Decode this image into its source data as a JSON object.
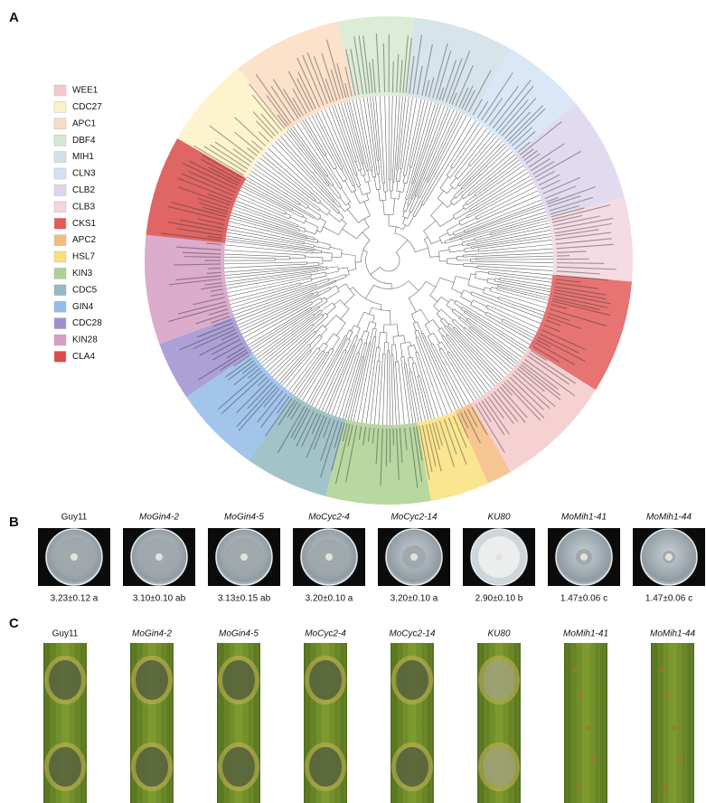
{
  "panels": {
    "a": "A",
    "b": "B",
    "c": "C"
  },
  "legend": {
    "items": [
      {
        "label": "WEE1",
        "color": "#f5c9cc"
      },
      {
        "label": "CDC27",
        "color": "#fdf1c6"
      },
      {
        "label": "APC1",
        "color": "#fbdcc2"
      },
      {
        "label": "DBF4",
        "color": "#d6e9d0"
      },
      {
        "label": "MIH1",
        "color": "#d0e1e7"
      },
      {
        "label": "CLN3",
        "color": "#d2e3f4"
      },
      {
        "label": "CLB2",
        "color": "#ddd5ed"
      },
      {
        "label": "CLB3",
        "color": "#f3d5de"
      },
      {
        "label": "CKS1",
        "color": "#e35b5b"
      },
      {
        "label": "APC2",
        "color": "#f5bb7e"
      },
      {
        "label": "HSL7",
        "color": "#f9e07c"
      },
      {
        "label": "KIN3",
        "color": "#aad191"
      },
      {
        "label": "CDC5",
        "color": "#92babf"
      },
      {
        "label": "GIN4",
        "color": "#93bbe7"
      },
      {
        "label": "CDC28",
        "color": "#9d8fd0"
      },
      {
        "label": "KIN28",
        "color": "#d59dc2"
      },
      {
        "label": "CLA4",
        "color": "#da4a4a"
      }
    ]
  },
  "panel_b": {
    "plates": [
      {
        "label": "Guy11",
        "measurement": "3.23±0.12 a"
      },
      {
        "label": "MoGin4-2",
        "measurement": "3.10±0.10 ab"
      },
      {
        "label": "MoGin4-5",
        "measurement": "3.13±0.15 ab"
      },
      {
        "label": "MoCyc2-4",
        "measurement": "3.20±0.10 a"
      },
      {
        "label": "MoCyc2-14",
        "measurement": "3.20±0.10 a"
      },
      {
        "label": "KU80",
        "measurement": "2.90±0.10 b"
      },
      {
        "label": "MoMih1-41",
        "measurement": "1.47±0.06 c"
      },
      {
        "label": "MoMih1-44",
        "measurement": "1.47±0.06 c"
      }
    ]
  },
  "panel_c": {
    "leaves": [
      "Guy11",
      "MoGin4-2",
      "MoGin4-5",
      "MoCyc2-4",
      "MoCyc2-14",
      "KU80",
      "MoMih1-41",
      "MoMih1-44"
    ]
  }
}
